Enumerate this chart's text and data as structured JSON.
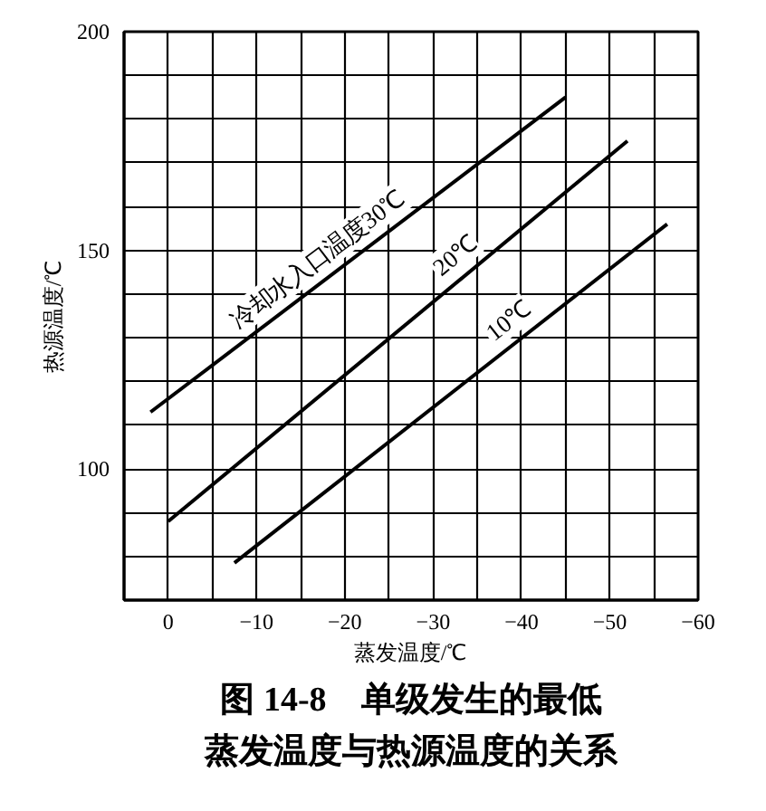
{
  "chart_data": {
    "type": "line",
    "title": "图 14-8　单级发生的最低蒸发温度与热源温度的关系",
    "xlabel": "蒸发温度/℃",
    "ylabel": "热源温度/℃",
    "xlim": [
      5,
      -60
    ],
    "ylim": [
      70,
      200
    ],
    "xticks": [
      0,
      {
        "value": -5,
        "label": null
      },
      {
        "value": -10,
        "label": "−10"
      },
      {
        "value": -15,
        "label": null
      },
      {
        "value": -20,
        "label": "−20"
      },
      {
        "value": -25,
        "label": null
      },
      {
        "value": -30,
        "label": "−30"
      },
      {
        "value": -35,
        "label": null
      },
      {
        "value": -40,
        "label": "−40"
      },
      {
        "value": -45,
        "label": null
      },
      {
        "value": -50,
        "label": "−50"
      },
      {
        "value": -55,
        "label": null
      },
      {
        "value": -60,
        "label": "−60"
      }
    ],
    "yticks": [
      {
        "value": 80,
        "label": null
      },
      {
        "value": 90,
        "label": null
      },
      100,
      {
        "value": 110,
        "label": null
      },
      {
        "value": 120,
        "label": null
      },
      {
        "value": 130,
        "label": null
      },
      {
        "value": 140,
        "label": null
      },
      150,
      {
        "value": 160,
        "label": null
      },
      {
        "value": 170,
        "label": null
      },
      {
        "value": 180,
        "label": null
      },
      {
        "value": 190,
        "label": null
      },
      200
    ],
    "grid": true,
    "series": [
      {
        "color": "#000000",
        "x": [
          2,
          -45
        ],
        "values": [
          113,
          185
        ]
      },
      {
        "color": "#000000",
        "x": [
          0,
          -52
        ],
        "values": [
          88,
          175
        ]
      },
      {
        "color": "#000000",
        "x": [
          -7.5,
          -56.5
        ],
        "values": [
          78.5,
          156
        ]
      }
    ],
    "annotations": [
      {
        "text": "冷却水入口温度30℃",
        "x": -19,
        "y": 145
      },
      {
        "text": "20℃",
        "x": -34,
        "y": 145
      },
      {
        "text": "10℃",
        "x": -40,
        "y": 130
      }
    ]
  }
}
